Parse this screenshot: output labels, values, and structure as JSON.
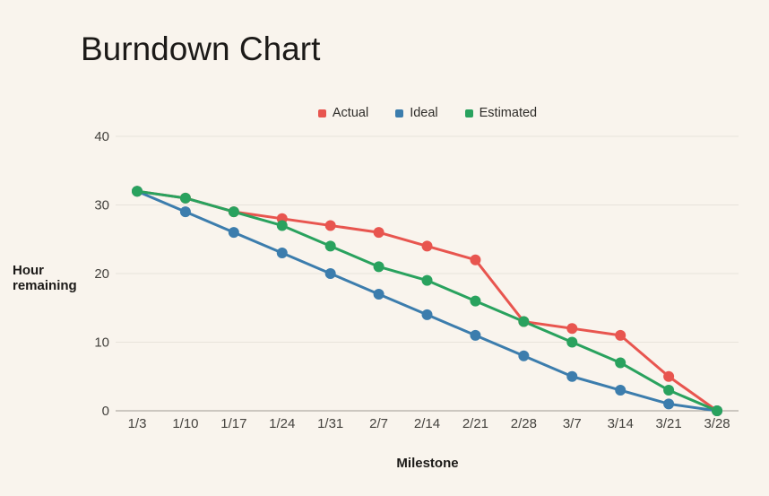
{
  "page": {
    "background": "#f9f4ed"
  },
  "chart_data": {
    "type": "line",
    "title": "Burndown Chart",
    "xlabel": "Milestone",
    "ylabel": "Hour remaining",
    "categories": [
      "1/3",
      "1/10",
      "1/17",
      "1/24",
      "1/31",
      "2/7",
      "2/14",
      "2/21",
      "2/28",
      "3/7",
      "3/14",
      "3/21",
      "3/28"
    ],
    "series": [
      {
        "name": "Actual",
        "color": "#e8554f",
        "values": [
          32,
          31,
          29,
          28,
          27,
          26,
          24,
          22,
          13,
          12,
          11,
          5,
          0
        ]
      },
      {
        "name": "Ideal",
        "color": "#3c7dad",
        "values": [
          32,
          29,
          26,
          23,
          20,
          17,
          14,
          11,
          8,
          5,
          3,
          1,
          0
        ]
      },
      {
        "name": "Estimated",
        "color": "#29a25e",
        "values": [
          32,
          31,
          29,
          27,
          24,
          21,
          19,
          16,
          13,
          10,
          7,
          3,
          0
        ]
      }
    ],
    "ylim": [
      0,
      40
    ],
    "yticks": [
      0,
      10,
      20,
      30,
      40
    ],
    "grid": true,
    "legend_position": "top",
    "colors": {
      "gridline": "#e8e3db",
      "baseline": "#9f9a93",
      "tick_text": "#44423e"
    }
  }
}
